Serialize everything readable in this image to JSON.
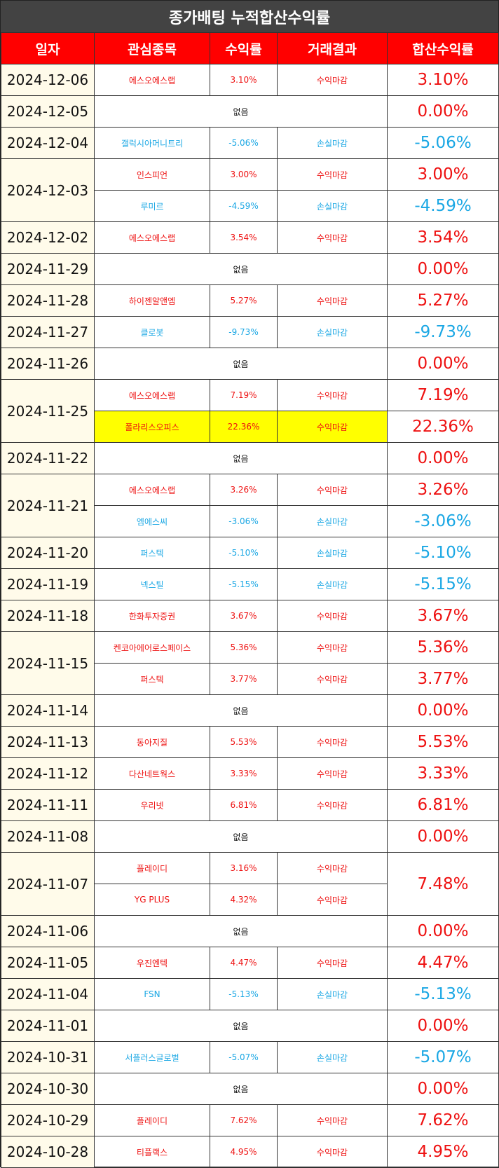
{
  "title": "종가배팅 누적합산수익률",
  "columns": [
    "일자",
    "관심종목",
    "수익률",
    "거래결과",
    "합산수익률"
  ],
  "none_label": "없음",
  "colors": {
    "header_bg": "#ff0000",
    "title_bg": "#434343",
    "positive": "#ee1111",
    "negative": "#1aa7e4",
    "highlight": "#ffff00",
    "date_bg": "#fffbea"
  },
  "days": [
    {
      "date": "2024-12-06",
      "trades": [
        {
          "stock": "에스오에스랩",
          "rate": "3.10%",
          "result": "수익마감",
          "total": "3.10%"
        }
      ]
    },
    {
      "date": "2024-12-05",
      "trades": [],
      "total": "0.00%"
    },
    {
      "date": "2024-12-04",
      "trades": [
        {
          "stock": "갤럭시아머니트리",
          "rate": "-5.06%",
          "result": "손실마감",
          "total": "-5.06%"
        }
      ]
    },
    {
      "date": "2024-12-03",
      "trades": [
        {
          "stock": "인스피언",
          "rate": "3.00%",
          "result": "수익마감",
          "total": "3.00%"
        },
        {
          "stock": "루미르",
          "rate": "-4.59%",
          "result": "손실마감",
          "total": "-4.59%"
        }
      ]
    },
    {
      "date": "2024-12-02",
      "trades": [
        {
          "stock": "에스오에스랩",
          "rate": "3.54%",
          "result": "수익마감",
          "total": "3.54%"
        }
      ]
    },
    {
      "date": "2024-11-29",
      "trades": [],
      "total": "0.00%"
    },
    {
      "date": "2024-11-28",
      "trades": [
        {
          "stock": "하이젠알앤엠",
          "rate": "5.27%",
          "result": "수익마감",
          "total": "5.27%"
        }
      ]
    },
    {
      "date": "2024-11-27",
      "trades": [
        {
          "stock": "클로봇",
          "rate": "-9.73%",
          "result": "손실마감",
          "total": "-9.73%"
        }
      ]
    },
    {
      "date": "2024-11-26",
      "trades": [],
      "total": "0.00%"
    },
    {
      "date": "2024-11-25",
      "trades": [
        {
          "stock": "에스오에스랩",
          "rate": "7.19%",
          "result": "수익마감",
          "total": "7.19%"
        },
        {
          "stock": "폴라리스오피스",
          "rate": "22.36%",
          "result": "수익마감",
          "total": "22.36%",
          "highlight": true
        }
      ]
    },
    {
      "date": "2024-11-22",
      "trades": [],
      "total": "0.00%"
    },
    {
      "date": "2024-11-21",
      "trades": [
        {
          "stock": "에스오에스랩",
          "rate": "3.26%",
          "result": "수익마감",
          "total": "3.26%"
        },
        {
          "stock": "엠에스씨",
          "rate": "-3.06%",
          "result": "손실마감",
          "total": "-3.06%"
        }
      ]
    },
    {
      "date": "2024-11-20",
      "trades": [
        {
          "stock": "퍼스텍",
          "rate": "-5.10%",
          "result": "손실마감",
          "total": "-5.10%"
        }
      ]
    },
    {
      "date": "2024-11-19",
      "trades": [
        {
          "stock": "넥스틸",
          "rate": "-5.15%",
          "result": "손실마감",
          "total": "-5.15%"
        }
      ]
    },
    {
      "date": "2024-11-18",
      "trades": [
        {
          "stock": "한화투자증권",
          "rate": "3.67%",
          "result": "수익마감",
          "total": "3.67%"
        }
      ]
    },
    {
      "date": "2024-11-15",
      "trades": [
        {
          "stock": "켄코아에어로스페이스",
          "rate": "5.36%",
          "result": "수익마감",
          "total": "5.36%"
        },
        {
          "stock": "퍼스텍",
          "rate": "3.77%",
          "result": "수익마감",
          "total": "3.77%"
        }
      ]
    },
    {
      "date": "2024-11-14",
      "trades": [],
      "total": "0.00%"
    },
    {
      "date": "2024-11-13",
      "trades": [
        {
          "stock": "동아지질",
          "rate": "5.53%",
          "result": "수익마감",
          "total": "5.53%"
        }
      ]
    },
    {
      "date": "2024-11-12",
      "trades": [
        {
          "stock": "다산네트웍스",
          "rate": "3.33%",
          "result": "수익마감",
          "total": "3.33%"
        }
      ]
    },
    {
      "date": "2024-11-11",
      "trades": [
        {
          "stock": "우리넷",
          "rate": "6.81%",
          "result": "수익마감",
          "total": "6.81%"
        }
      ]
    },
    {
      "date": "2024-11-08",
      "trades": [],
      "total": "0.00%"
    },
    {
      "date": "2024-11-07",
      "trades": [
        {
          "stock": "플레이디",
          "rate": "3.16%",
          "result": "수익마감"
        },
        {
          "stock": "YG PLUS",
          "rate": "4.32%",
          "result": "수익마감"
        }
      ],
      "total": "7.48%"
    },
    {
      "date": "2024-11-06",
      "trades": [],
      "total": "0.00%"
    },
    {
      "date": "2024-11-05",
      "trades": [
        {
          "stock": "우진엔텍",
          "rate": "4.47%",
          "result": "수익마감",
          "total": "4.47%"
        }
      ]
    },
    {
      "date": "2024-11-04",
      "trades": [
        {
          "stock": "FSN",
          "rate": "-5.13%",
          "result": "손실마감",
          "total": "-5.13%"
        }
      ]
    },
    {
      "date": "2024-11-01",
      "trades": [],
      "total": "0.00%"
    },
    {
      "date": "2024-10-31",
      "trades": [
        {
          "stock": "서플러스글로벌",
          "rate": "-5.07%",
          "result": "손실마감",
          "total": "-5.07%"
        }
      ]
    },
    {
      "date": "2024-10-30",
      "trades": [],
      "total": "0.00%"
    },
    {
      "date": "2024-10-29",
      "trades": [
        {
          "stock": "플레이디",
          "rate": "7.62%",
          "result": "수익마감",
          "total": "7.62%"
        }
      ]
    },
    {
      "date": "2024-10-28",
      "trades": [
        {
          "stock": "티플랙스",
          "rate": "4.95%",
          "result": "수익마감",
          "total": "4.95%"
        }
      ]
    }
  ]
}
